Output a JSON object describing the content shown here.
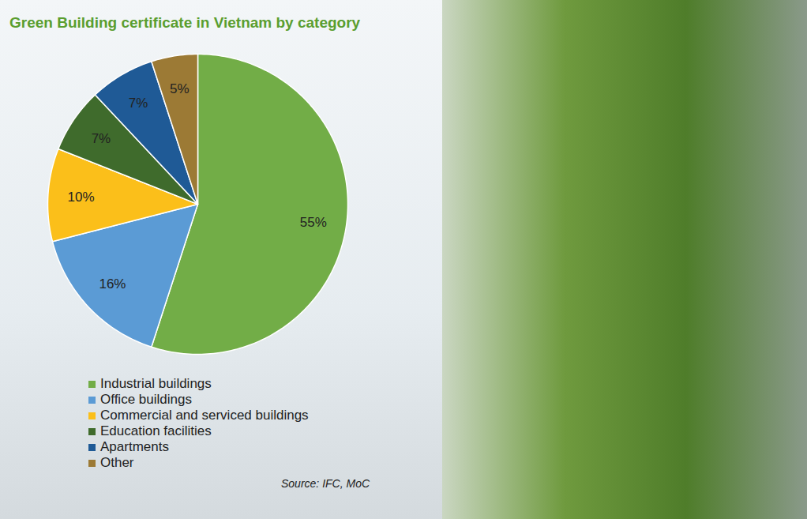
{
  "chart_data": {
    "type": "pie",
    "title": "Green Building certificate in Vietnam by category",
    "categories": [
      "Industrial buildings",
      "Office buildings",
      "Commercial and serviced buildings",
      "Education facilities",
      "Apartments",
      "Other"
    ],
    "values": [
      55,
      16,
      10,
      7,
      7,
      5
    ],
    "value_labels": [
      "55%",
      "16%",
      "10%",
      "7%",
      "7%",
      "5%"
    ],
    "colors": [
      "#72ad47",
      "#5b9bd5",
      "#fbbf1a",
      "#3f6b2c",
      "#1f5a96",
      "#9c7a35"
    ],
    "data_labels": true,
    "legend": "bottom",
    "source": "Source: IFC, MoC"
  }
}
